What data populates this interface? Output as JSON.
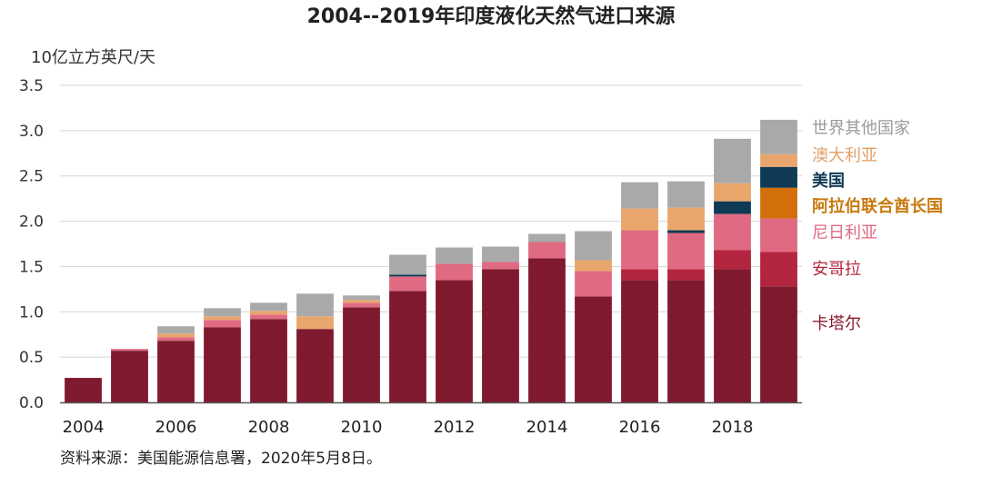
{
  "chart_data": {
    "type": "bar",
    "stacked": true,
    "title": "2004--2019年印度液化天然气进口来源",
    "ylabel": "10亿立方英尺/天",
    "xlabel": "",
    "ylim": [
      0,
      3.5
    ],
    "yticks": [
      0.0,
      0.5,
      1.0,
      1.5,
      2.0,
      2.5,
      3.0,
      3.5
    ],
    "ytick_labels": [
      "0.0",
      "0.5",
      "1.0",
      "1.5",
      "2.0",
      "2.5",
      "3.0",
      "3.5"
    ],
    "grid": true,
    "categories": [
      "2004",
      "2005",
      "2006",
      "2007",
      "2008",
      "2009",
      "2010",
      "2011",
      "2012",
      "2013",
      "2014",
      "2015",
      "2016",
      "2017",
      "2018",
      "2019"
    ],
    "xtick_labels": [
      "2004",
      "",
      "2006",
      "",
      "2008",
      "",
      "2010",
      "",
      "2012",
      "",
      "2014",
      "",
      "2016",
      "",
      "2018",
      ""
    ],
    "series": [
      {
        "name": "卡塔尔",
        "color": "#7f1a2e",
        "values": [
          0.27,
          0.57,
          0.68,
          0.83,
          0.92,
          0.81,
          1.05,
          1.23,
          1.35,
          1.47,
          1.59,
          1.17,
          1.35,
          1.35,
          1.47,
          1.28
        ]
      },
      {
        "name": "安哥拉",
        "color": "#b3243e",
        "values": [
          0,
          0,
          0,
          0,
          0,
          0,
          0,
          0,
          0,
          0,
          0,
          0,
          0.12,
          0.12,
          0.21,
          0.38
        ]
      },
      {
        "name": "尼日利亚",
        "color": "#e06a82",
        "values": [
          0,
          0.02,
          0.04,
          0.08,
          0.05,
          0,
          0.05,
          0.16,
          0.18,
          0.08,
          0.18,
          0.28,
          0.43,
          0.4,
          0.4,
          0.37
        ]
      },
      {
        "name": "阿拉伯联合酋长国",
        "color": "#d26f0b",
        "values": [
          0,
          0,
          0,
          0,
          0,
          0,
          0,
          0,
          0,
          0,
          0,
          0,
          0,
          0,
          0,
          0.34
        ]
      },
      {
        "name": "美国",
        "color": "#0f3a55",
        "values": [
          0,
          0,
          0,
          0,
          0,
          0,
          0,
          0.02,
          0,
          0,
          0,
          0,
          0,
          0.03,
          0.14,
          0.23
        ]
      },
      {
        "name": "澳大利亚",
        "color": "#e9a66c",
        "values": [
          0,
          0,
          0.04,
          0.04,
          0.04,
          0.14,
          0.03,
          0,
          0,
          0,
          0,
          0.12,
          0.24,
          0.25,
          0.2,
          0.14
        ]
      },
      {
        "name": "世界其他国家",
        "color": "#a9a9a9",
        "values": [
          0,
          0,
          0.08,
          0.09,
          0.09,
          0.25,
          0.05,
          0.22,
          0.18,
          0.17,
          0.09,
          0.32,
          0.29,
          0.29,
          0.49,
          0.38
        ]
      }
    ],
    "legend": {
      "placement": "right",
      "entries": [
        {
          "label": "世界其他国家",
          "color": "#999999"
        },
        {
          "label": "澳大利亚",
          "color": "#e0a06a"
        },
        {
          "label": "美国",
          "color": "#0f3a55"
        },
        {
          "label": "阿拉伯联合酋长国",
          "color": "#c77a0f"
        },
        {
          "label": "尼日利亚",
          "color": "#e06a82"
        },
        {
          "label": "安哥拉",
          "color": "#b3243e"
        },
        {
          "label": "卡塔尔",
          "color": "#8b1a2e"
        }
      ]
    },
    "source": "资料来源：美国能源信息署，2020年5月8日。"
  }
}
